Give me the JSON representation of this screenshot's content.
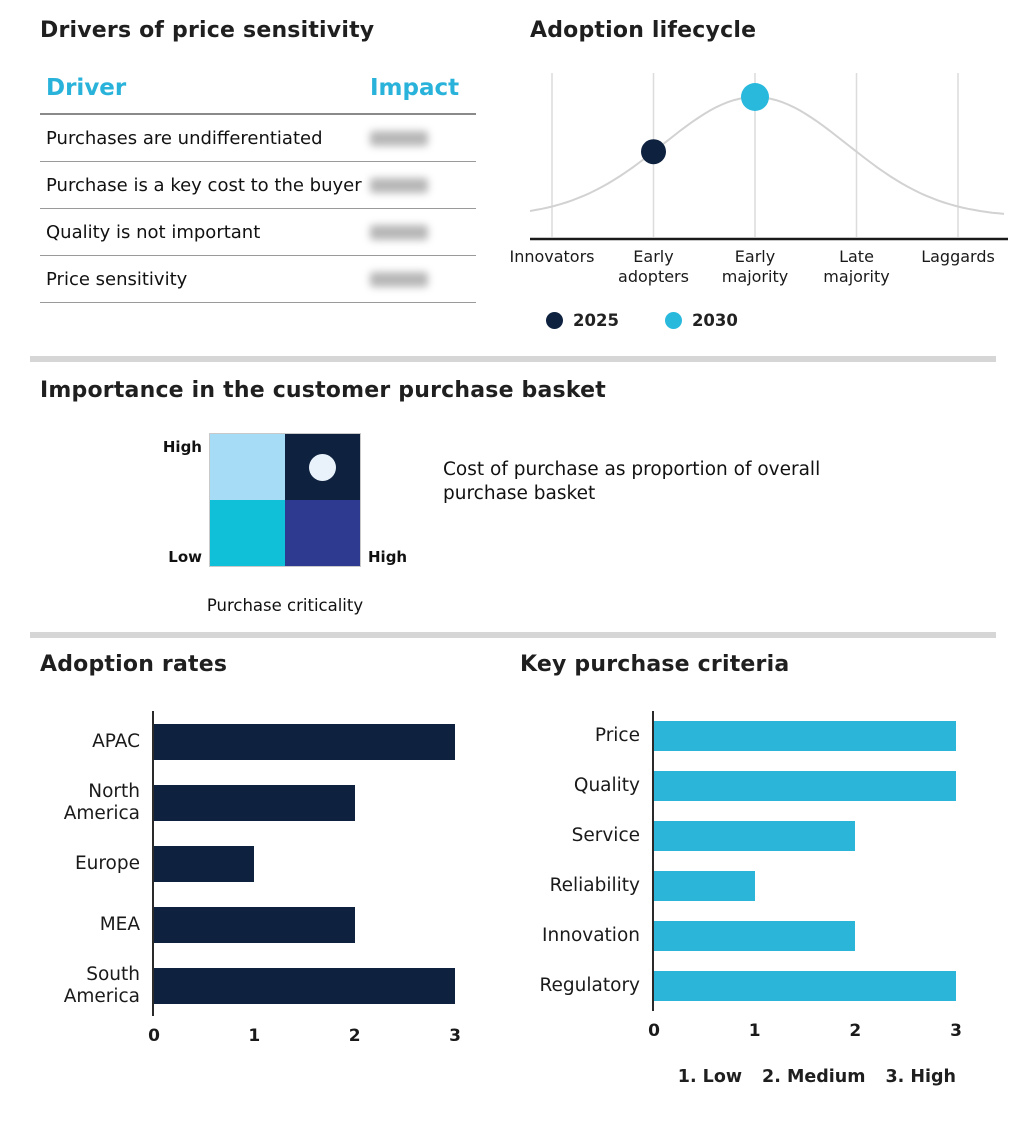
{
  "accent": {
    "cyan": "#29b2da",
    "navy": "#0e2240"
  },
  "panels": {
    "drivers": {
      "title": "Drivers of price sensitivity",
      "table": {
        "col_driver": "Driver",
        "col_impact": "Impact",
        "rows": [
          {
            "driver": "Purchases are undifferentiated",
            "impact_redacted": true
          },
          {
            "driver": "Purchase is a key cost to the buyer",
            "impact_redacted": true
          },
          {
            "driver": "Quality is not important",
            "impact_redacted": true
          },
          {
            "driver": "Price sensitivity",
            "impact_redacted": true
          }
        ]
      }
    }
  },
  "chart_data": [
    {
      "id": "adoption-lifecycle",
      "type": "line",
      "title": "Adoption lifecycle",
      "categories": [
        "Innovators",
        "Early adopters",
        "Early majority",
        "Late majority",
        "Laggards"
      ],
      "curve": "bell-shaped diffusion curve",
      "curve_color": "#d2d2d2",
      "grid": "vertical gridline at each category",
      "points": [
        {
          "series": "2025",
          "category": "Early adopters",
          "color": "#0e2240"
        },
        {
          "series": "2030",
          "category": "Early majority",
          "color": "#29b9dd"
        }
      ],
      "legend": [
        {
          "label": "2025",
          "color": "#0e2240"
        },
        {
          "label": "2030",
          "color": "#29b9dd"
        }
      ],
      "legend_position": "bottom"
    },
    {
      "id": "purchase-basket-matrix",
      "type": "heatmap",
      "title": "Importance in the customer purchase basket",
      "y_axis": {
        "max_label": "High",
        "min_label": "Low"
      },
      "x_axis": {
        "label": "Purchase criticality",
        "max_label": "High"
      },
      "cells": [
        [
          "#a6dcf5",
          "#0e2240"
        ],
        [
          "#10c0d8",
          "#2e3a90"
        ]
      ],
      "marker": {
        "row": 0,
        "col": 1,
        "color": "#e9f2fa"
      },
      "annotation": "Cost of purchase as proportion of overall purchase basket"
    },
    {
      "id": "adoption-rates",
      "type": "bar",
      "orientation": "horizontal",
      "title": "Adoption rates",
      "categories": [
        "APAC",
        "North America",
        "Europe",
        "MEA",
        "South America"
      ],
      "values": [
        3,
        2,
        1,
        2,
        3
      ],
      "xlim": [
        0,
        3
      ],
      "ticks": [
        0,
        1,
        2,
        3
      ],
      "bar_color": "#0e2240",
      "grid": "off"
    },
    {
      "id": "key-purchase-criteria",
      "type": "bar",
      "orientation": "horizontal",
      "title": "Key purchase criteria",
      "categories": [
        "Price",
        "Quality",
        "Service",
        "Reliability",
        "Innovation",
        "Regulatory"
      ],
      "values": [
        3,
        3,
        2,
        1,
        2,
        3
      ],
      "xlim": [
        0,
        3
      ],
      "ticks": [
        0,
        1,
        2,
        3
      ],
      "bar_color": "#2bb5d8",
      "grid": "off",
      "scale_note": [
        "1. Low",
        "2. Medium",
        "3. High"
      ]
    }
  ]
}
